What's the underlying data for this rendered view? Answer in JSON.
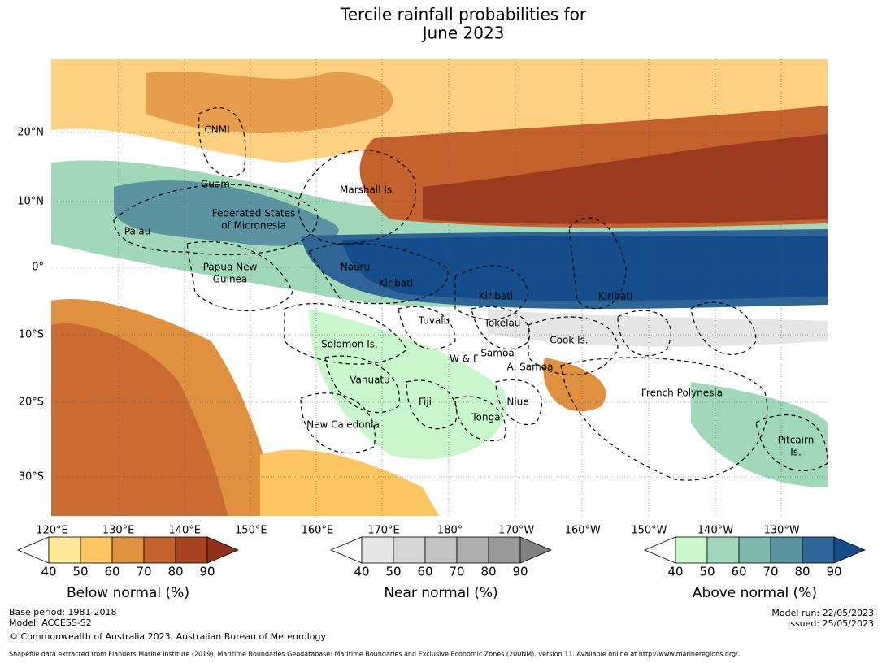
{
  "title": [
    "Tercile rainfall probabilities for",
    "June 2023"
  ],
  "map": {
    "lat_labels": [
      "20°N",
      "10°N",
      "0°",
      "10°S",
      "20°S",
      "30°S"
    ],
    "lon_labels": [
      "120°E",
      "130°E",
      "140°E",
      "150°E",
      "160°E",
      "170°E",
      "180°",
      "170°W",
      "160°W",
      "150°W",
      "140°W",
      "130°W"
    ],
    "regions": [
      {
        "label": [
          "CNMI"
        ]
      },
      {
        "label": [
          "Guam"
        ]
      },
      {
        "label": [
          "Marshall Is."
        ]
      },
      {
        "label": [
          "Federated States",
          "of Micronesia"
        ]
      },
      {
        "label": [
          "Palau"
        ]
      },
      {
        "label": [
          "Papua New",
          "Guinea"
        ]
      },
      {
        "label": [
          "Nauru"
        ]
      },
      {
        "label": [
          "Kiribati"
        ]
      },
      {
        "label": [
          "Kiribati"
        ]
      },
      {
        "label": [
          "Kiribati"
        ]
      },
      {
        "label": [
          "Tuvalu"
        ]
      },
      {
        "label": [
          "Tokelau"
        ]
      },
      {
        "label": [
          "Cook Is."
        ]
      },
      {
        "label": [
          "Solomon Is."
        ]
      },
      {
        "label": [
          "W & F"
        ]
      },
      {
        "label": [
          "Samoa"
        ]
      },
      {
        "label": [
          "A. Samoa"
        ]
      },
      {
        "label": [
          "Vanuatu"
        ]
      },
      {
        "label": [
          "French Polynesia"
        ]
      },
      {
        "label": [
          "Fiji"
        ]
      },
      {
        "label": [
          "Niue"
        ]
      },
      {
        "label": [
          "Tonga"
        ]
      },
      {
        "label": [
          "New Caledonia"
        ]
      },
      {
        "label": [
          "Pitcairn",
          "Is."
        ]
      }
    ]
  },
  "legends": [
    {
      "title": "Below normal (%)",
      "ticks": [
        40,
        50,
        60,
        70,
        80,
        90
      ],
      "under_color": "#ffffff",
      "colors": [
        "#fee99a",
        "#fdc660",
        "#e0913f",
        "#c4622e",
        "#a8431f"
      ],
      "over_color": "#8f3318"
    },
    {
      "title": "Near normal (%)",
      "ticks": [
        40,
        50,
        60,
        70,
        80,
        90
      ],
      "under_color": "#ffffff",
      "colors": [
        "#e6e6e6",
        "#d4d4d4",
        "#c2c2c2",
        "#adadad",
        "#9a9a9a"
      ],
      "over_color": "#808080"
    },
    {
      "title": "Above normal (%)",
      "ticks": [
        40,
        50,
        60,
        70,
        80,
        90
      ],
      "under_color": "#ffffff",
      "colors": [
        "#c8f7cc",
        "#a0d8b8",
        "#7fb8b0",
        "#5b93a0",
        "#2f6496"
      ],
      "over_color": "#134e8a"
    }
  ],
  "footer": {
    "left": [
      "Base period: 1981-2018",
      "Model: ACCESS-S2",
      "© Commonwealth of Australia 2023, Australian Bureau of Meteorology"
    ],
    "right": [
      "Model run: 22/05/2023",
      "Issued: 25/05/2023"
    ],
    "source": "Shapefile data extracted from Flanders Marine Institute (2019), Maritime Boundaries Geodatabase: Maritime Boundaries and Exclusive Economic Zones (200NM), version 11. Available online at http://www.marineregions.org/."
  }
}
